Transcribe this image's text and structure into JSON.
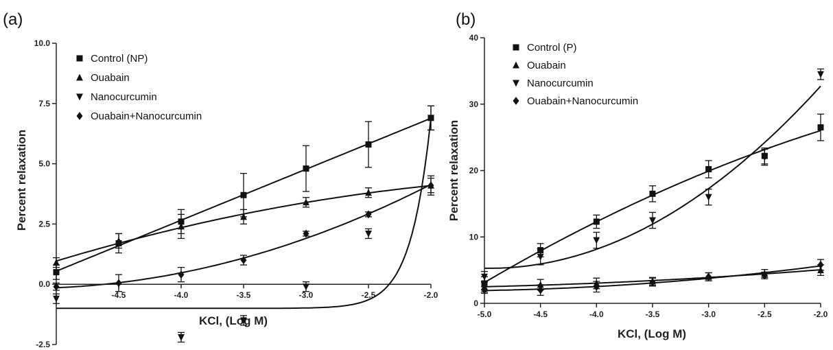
{
  "chart_data": [
    {
      "type": "line",
      "panel_label": "(a)",
      "xlabel": "KCl, (Log M)",
      "ylabel": "Percent relaxation",
      "xlim": [
        -5.0,
        -2.0
      ],
      "ylim": [
        -2.5,
        10.0
      ],
      "x_ticks": [
        "-4.5",
        "-4.0",
        "-3.5",
        "-3.0",
        "-2.5",
        "-2.0"
      ],
      "y_ticks": [
        "-2.5",
        "0.0",
        "2.5",
        "5.0",
        "7.5",
        "10.0"
      ],
      "legend_position": "top-left",
      "series": [
        {
          "name": "Control (NP)",
          "marker": "square",
          "x": [
            -5.0,
            -4.5,
            -4.0,
            -3.5,
            -3.0,
            -2.5,
            -2.0
          ],
          "y": [
            0.5,
            1.7,
            2.6,
            3.7,
            4.8,
            5.8,
            6.9
          ],
          "err": [
            0.3,
            0.4,
            0.5,
            0.9,
            0.95,
            0.95,
            0.5
          ]
        },
        {
          "name": "Ouabain",
          "marker": "triangle-up",
          "x": [
            -5.0,
            -4.5,
            -4.0,
            -3.5,
            -3.0,
            -2.5,
            -2.0
          ],
          "y": [
            0.9,
            1.8,
            2.4,
            2.8,
            3.4,
            3.8,
            4.1
          ],
          "err": [
            0.2,
            0.3,
            0.5,
            0.3,
            0.2,
            0.2,
            0.4
          ]
        },
        {
          "name": "Nanocurcumin",
          "marker": "triangle-down",
          "x": [
            -5.0,
            -4.0,
            -3.5,
            -3.0,
            -2.5,
            -2.0
          ],
          "y": [
            -0.6,
            -2.2,
            -1.5,
            -0.1,
            2.1,
            6.9
          ],
          "err": [
            0.2,
            0.2,
            0.2,
            0.2,
            0.2,
            0.5
          ]
        },
        {
          "name": "Ouabain+Nanocurcumin",
          "marker": "diamond",
          "x": [
            -5.0,
            -4.5,
            -4.0,
            -3.5,
            -3.0,
            -2.5,
            -2.0
          ],
          "y": [
            -0.1,
            0.05,
            0.4,
            1.0,
            2.1,
            2.9,
            4.1
          ],
          "err": [
            0.15,
            0.35,
            0.3,
            0.2,
            0.1,
            0.1,
            0.3
          ]
        }
      ]
    },
    {
      "type": "line",
      "panel_label": "(b)",
      "xlabel": "KCl, (Log M)",
      "ylabel": "Percent relaxation",
      "xlim": [
        -5.0,
        -2.0
      ],
      "ylim": [
        0,
        40
      ],
      "x_ticks": [
        "-5.0",
        "-4.5",
        "-4.0",
        "-3.5",
        "-3.0",
        "-2.5",
        "-2.0"
      ],
      "y_ticks": [
        "0",
        "10",
        "20",
        "30",
        "40"
      ],
      "legend_position": "top-left",
      "series": [
        {
          "name": "Control (P)",
          "marker": "square",
          "x": [
            -5.0,
            -4.5,
            -4.0,
            -3.5,
            -3.0,
            -2.5,
            -2.0
          ],
          "y": [
            3.0,
            8.0,
            12.3,
            16.5,
            20.2,
            22.2,
            26.5
          ],
          "err": [
            1.0,
            1.0,
            1.0,
            1.2,
            1.3,
            1.2,
            2.0
          ]
        },
        {
          "name": "Ouabain",
          "marker": "triangle-up",
          "x": [
            -5.0,
            -4.5,
            -4.0,
            -3.5,
            -3.0,
            -2.5,
            -2.0
          ],
          "y": [
            2.5,
            2.8,
            3.0,
            3.3,
            4.0,
            4.5,
            5.0
          ],
          "err": [
            0.8,
            0.8,
            0.8,
            0.6,
            0.6,
            0.6,
            0.8
          ]
        },
        {
          "name": "Nanocurcumin",
          "marker": "triangle-down",
          "x": [
            -5.0,
            -4.5,
            -4.0,
            -3.5,
            -3.0,
            -2.5,
            -2.0
          ],
          "y": [
            4.0,
            7.0,
            9.5,
            12.5,
            16.0,
            22.0,
            34.5
          ],
          "err": [
            0.8,
            1.2,
            1.2,
            1.2,
            1.2,
            1.2,
            0.8
          ]
        },
        {
          "name": "Ouabain+Nanocurcumin",
          "marker": "diamond",
          "x": [
            -5.0,
            -4.5,
            -4.0,
            -3.5,
            -3.0,
            -2.5,
            -2.0
          ],
          "y": [
            2.0,
            2.0,
            2.5,
            3.2,
            4.0,
            4.2,
            5.8
          ],
          "err": [
            0.5,
            0.8,
            0.8,
            0.6,
            0.6,
            0.5,
            0.8
          ]
        }
      ]
    }
  ]
}
